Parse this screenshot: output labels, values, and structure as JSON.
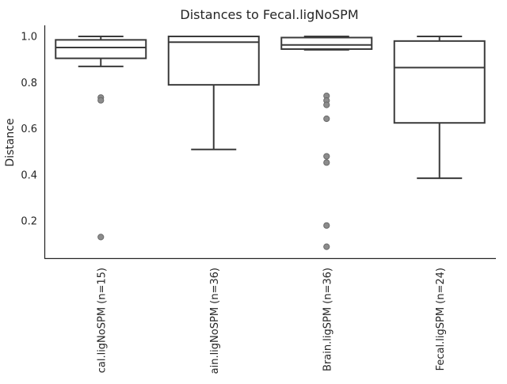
{
  "chart_data": {
    "type": "box",
    "title": "Distances to Fecal.ligNoSPM",
    "xlabel": "",
    "ylabel": "Distance",
    "ylim": [
      0.03,
      1.05
    ],
    "yticks": [
      0.2,
      0.4,
      0.6,
      0.8,
      1.0
    ],
    "ytick_labels": [
      "0.2",
      "0.4",
      "0.6",
      "0.8",
      "1.0"
    ],
    "grid": false,
    "categories": [
      "cal.ligNoSPM (n=15)",
      "ain.ligNoSPM (n=36)",
      "Brain.ligSPM (n=36)",
      "Fecal.ligSPM (n=24)"
    ],
    "boxes": [
      {
        "whisker_low": 0.87,
        "q1": 0.905,
        "median": 0.952,
        "q3": 0.985,
        "whisker_high": 1.0,
        "outliers": [
          0.735,
          0.723,
          0.13
        ]
      },
      {
        "whisker_low": 0.51,
        "q1": 0.79,
        "median": 0.975,
        "q3": 1.0,
        "whisker_high": 1.0,
        "outliers": []
      },
      {
        "whisker_low": 0.942,
        "q1": 0.945,
        "median": 0.963,
        "q3": 0.995,
        "whisker_high": 1.0,
        "outliers": [
          0.742,
          0.722,
          0.703,
          0.643,
          0.48,
          0.453,
          0.18,
          0.088
        ]
      },
      {
        "whisker_low": 0.385,
        "q1": 0.625,
        "median": 0.865,
        "q3": 0.98,
        "whisker_high": 1.0,
        "outliers": []
      }
    ]
  }
}
